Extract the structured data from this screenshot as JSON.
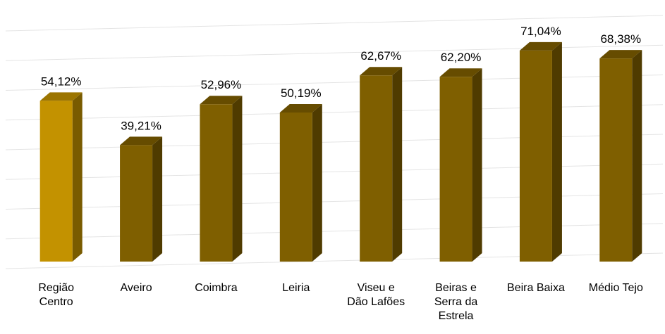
{
  "chart_data": {
    "type": "bar3d",
    "categories": [
      "Região Centro",
      "Aveiro",
      "Coimbra",
      "Leiria",
      "Viseu e Dão Lafões",
      "Beiras e Serra da Estrela",
      "Beira Baixa",
      "Médio Tejo"
    ],
    "values": [
      54.12,
      39.21,
      52.96,
      50.19,
      62.67,
      62.2,
      71.04,
      68.38
    ],
    "value_labels": [
      "54,12%",
      "39,21%",
      "52,96%",
      "50,19%",
      "62,67%",
      "62,20%",
      "71,04%",
      "68,38%"
    ],
    "colors": [
      "#c39200",
      "#7f5f00",
      "#7f5f00",
      "#7f5f00",
      "#7f5f00",
      "#7f5f00",
      "#7f5f00",
      "#7f5f00"
    ],
    "ylim": [
      0,
      80
    ],
    "yticks": [
      0,
      10,
      20,
      30,
      40,
      50,
      60,
      70,
      80
    ],
    "grid": true
  }
}
